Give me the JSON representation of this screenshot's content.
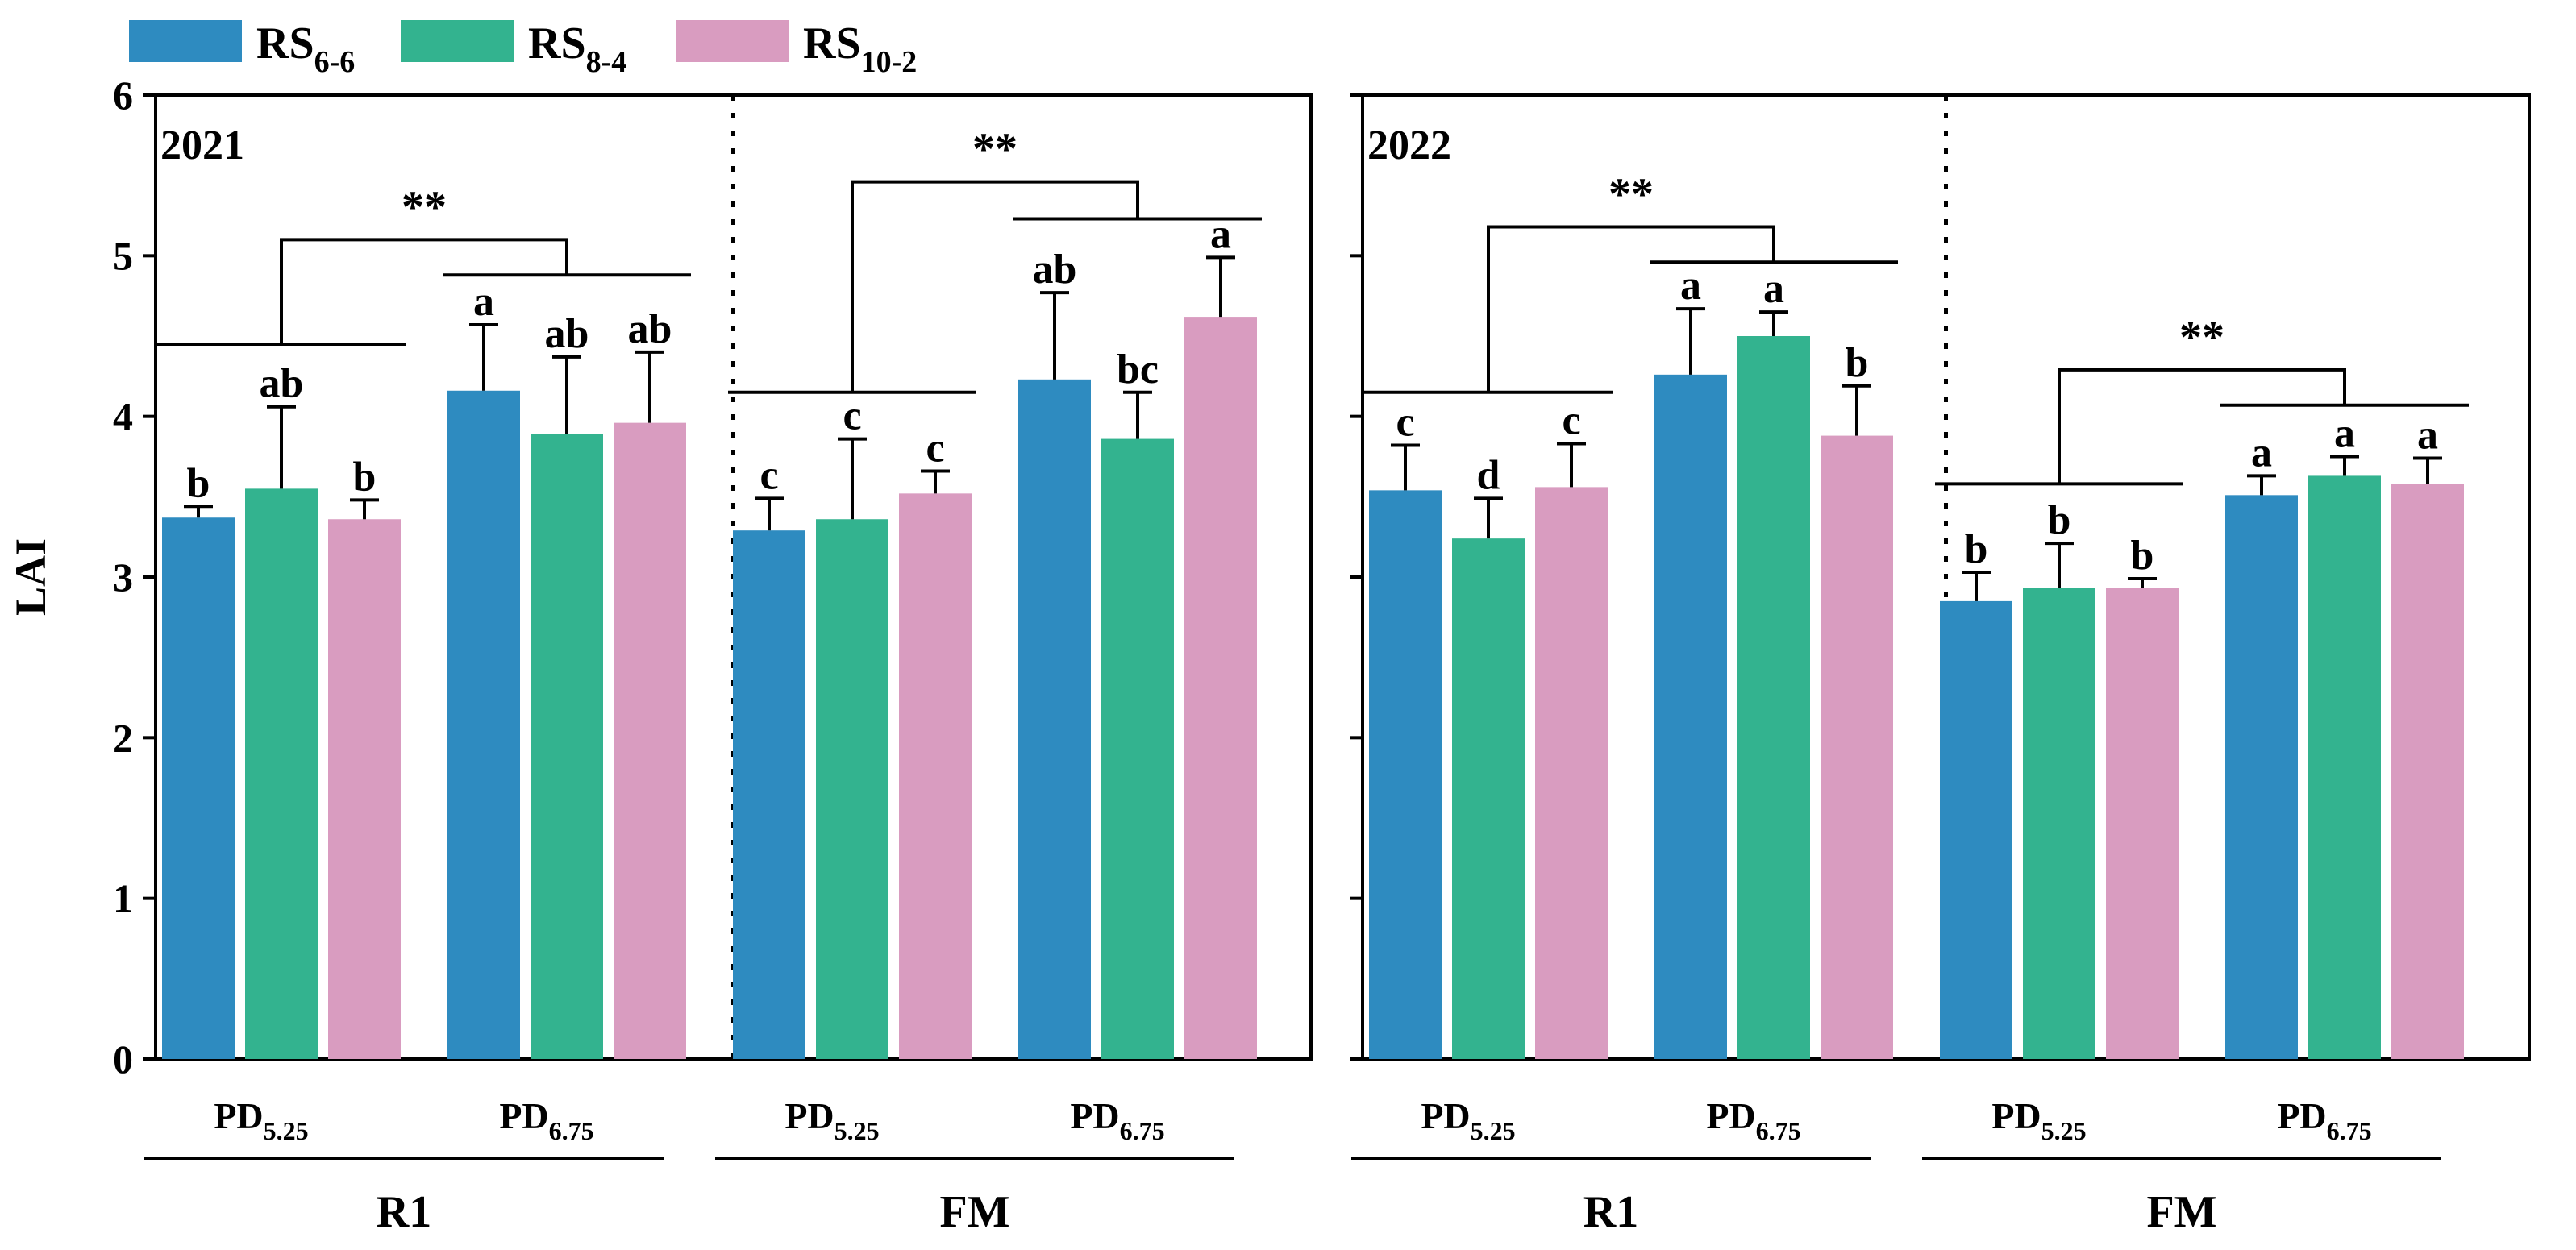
{
  "chart_data": {
    "type": "bar",
    "ylabel": "LAI",
    "ylim": [
      0,
      6
    ],
    "yticks": [
      0,
      1,
      2,
      3,
      4,
      5,
      6
    ],
    "grid": false,
    "legend_position": "top-left",
    "colors": {
      "RS6-6": "#2e8bc0",
      "RS8-4": "#33b38f",
      "RS10-2": "#d99cc0"
    },
    "legend": [
      {
        "base": "RS",
        "sub": "6-6",
        "key": "RS6-6"
      },
      {
        "base": "RS",
        "sub": "8-4",
        "key": "RS8-4"
      },
      {
        "base": "RS",
        "sub": "10-2",
        "key": "RS10-2"
      }
    ],
    "significance_mark": "**",
    "panels": [
      {
        "year": "2021",
        "sections": [
          {
            "name": "R1",
            "sig_bracket_y": [
              4.45,
              4.88,
              5.1
            ],
            "groups": [
              {
                "label_base": "PD",
                "label_sub": "5.25",
                "line_y": 4.45,
                "bars": [
                  {
                    "series": "RS6-6",
                    "value": 3.37,
                    "error": 0.07,
                    "letter": "b"
                  },
                  {
                    "series": "RS8-4",
                    "value": 3.55,
                    "error": 0.51,
                    "letter": "ab"
                  },
                  {
                    "series": "RS10-2",
                    "value": 3.36,
                    "error": 0.12,
                    "letter": "b"
                  }
                ]
              },
              {
                "label_base": "PD",
                "label_sub": "6.75",
                "line_y": 4.88,
                "bars": [
                  {
                    "series": "RS6-6",
                    "value": 4.16,
                    "error": 0.41,
                    "letter": "a"
                  },
                  {
                    "series": "RS8-4",
                    "value": 3.89,
                    "error": 0.48,
                    "letter": "ab"
                  },
                  {
                    "series": "RS10-2",
                    "value": 3.96,
                    "error": 0.44,
                    "letter": "ab"
                  }
                ]
              }
            ]
          },
          {
            "name": "FM",
            "sig_bracket_y": [
              4.15,
              5.23,
              5.46
            ],
            "groups": [
              {
                "label_base": "PD",
                "label_sub": "5.25",
                "line_y": 4.15,
                "bars": [
                  {
                    "series": "RS6-6",
                    "value": 3.29,
                    "error": 0.2,
                    "letter": "c"
                  },
                  {
                    "series": "RS8-4",
                    "value": 3.36,
                    "error": 0.5,
                    "letter": "c"
                  },
                  {
                    "series": "RS10-2",
                    "value": 3.52,
                    "error": 0.14,
                    "letter": "c"
                  }
                ]
              },
              {
                "label_base": "PD",
                "label_sub": "6.75",
                "line_y": 5.23,
                "bars": [
                  {
                    "series": "RS6-6",
                    "value": 4.23,
                    "error": 0.54,
                    "letter": "ab"
                  },
                  {
                    "series": "RS8-4",
                    "value": 3.86,
                    "error": 0.29,
                    "letter": "bc"
                  },
                  {
                    "series": "RS10-2",
                    "value": 4.62,
                    "error": 0.37,
                    "letter": "a"
                  }
                ]
              }
            ]
          }
        ]
      },
      {
        "year": "2022",
        "sections": [
          {
            "name": "R1",
            "sig_bracket_y": [
              4.15,
              4.96,
              5.18
            ],
            "groups": [
              {
                "label_base": "PD",
                "label_sub": "5.25",
                "line_y": 4.15,
                "bars": [
                  {
                    "series": "RS6-6",
                    "value": 3.54,
                    "error": 0.28,
                    "letter": "c"
                  },
                  {
                    "series": "RS8-4",
                    "value": 3.24,
                    "error": 0.25,
                    "letter": "d"
                  },
                  {
                    "series": "RS10-2",
                    "value": 3.56,
                    "error": 0.27,
                    "letter": "c"
                  }
                ]
              },
              {
                "label_base": "PD",
                "label_sub": "6.75",
                "line_y": 4.96,
                "bars": [
                  {
                    "series": "RS6-6",
                    "value": 4.26,
                    "error": 0.41,
                    "letter": "a"
                  },
                  {
                    "series": "RS8-4",
                    "value": 4.5,
                    "error": 0.15,
                    "letter": "a"
                  },
                  {
                    "series": "RS10-2",
                    "value": 3.88,
                    "error": 0.31,
                    "letter": "b"
                  }
                ]
              }
            ]
          },
          {
            "name": "FM",
            "sig_bracket_y": [
              3.58,
              4.07,
              4.29
            ],
            "groups": [
              {
                "label_base": "PD",
                "label_sub": "5.25",
                "line_y": 3.58,
                "bars": [
                  {
                    "series": "RS6-6",
                    "value": 2.85,
                    "error": 0.18,
                    "letter": "b"
                  },
                  {
                    "series": "RS8-4",
                    "value": 2.93,
                    "error": 0.28,
                    "letter": "b"
                  },
                  {
                    "series": "RS10-2",
                    "value": 2.93,
                    "error": 0.06,
                    "letter": "b"
                  }
                ]
              },
              {
                "label_base": "PD",
                "label_sub": "6.75",
                "line_y": 4.07,
                "bars": [
                  {
                    "series": "RS6-6",
                    "value": 3.51,
                    "error": 0.12,
                    "letter": "a"
                  },
                  {
                    "series": "RS8-4",
                    "value": 3.63,
                    "error": 0.12,
                    "letter": "a"
                  },
                  {
                    "series": "RS10-2",
                    "value": 3.58,
                    "error": 0.16,
                    "letter": "a"
                  }
                ]
              }
            ]
          }
        ]
      }
    ]
  }
}
